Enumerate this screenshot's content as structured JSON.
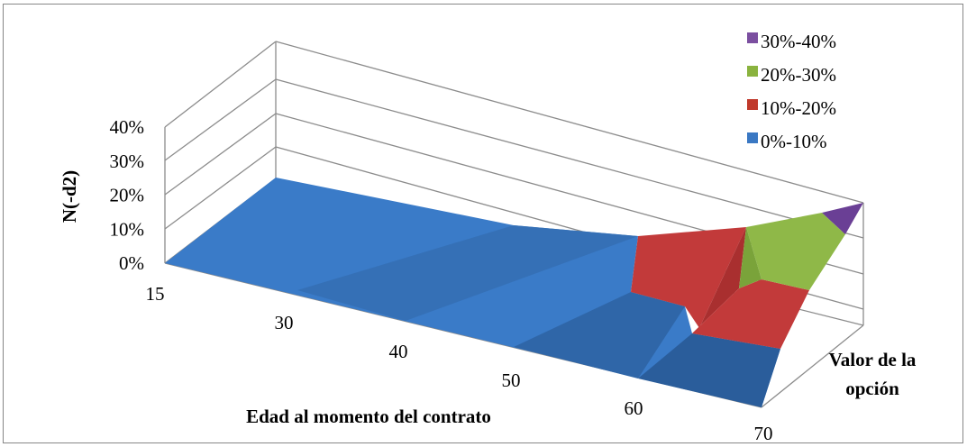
{
  "chart_data": {
    "type": "surface",
    "title": "",
    "ylabel": "N(-d2)",
    "xlabel": "Edad al momento del contrato",
    "zlabel": "Valor de la opción",
    "y_ticks": [
      "0%",
      "10%",
      "20%",
      "30%",
      "40%"
    ],
    "ylim": [
      0,
      0.4
    ],
    "x_categories": [
      "15",
      "30",
      "40",
      "50",
      "60",
      "70"
    ],
    "legend_position": "top-right",
    "bands": [
      {
        "name": "30%-40%",
        "range": [
          0.3,
          0.4
        ],
        "color": "#7b4fa0"
      },
      {
        "name": "20%-30%",
        "range": [
          0.2,
          0.3
        ],
        "color": "#8ab33f"
      },
      {
        "name": "10%-20%",
        "range": [
          0.1,
          0.2
        ],
        "color": "#c0392b"
      },
      {
        "name": "0%-10%",
        "range": [
          0.0,
          0.1
        ],
        "color": "#3a78c3"
      }
    ],
    "series": [
      {
        "values": [
          0.0,
          0.0,
          0.0,
          0.02,
          0.08,
          0.14
        ]
      },
      {
        "values": [
          0.0,
          0.0,
          0.0,
          0.05,
          0.16,
          0.32
        ]
      }
    ]
  }
}
